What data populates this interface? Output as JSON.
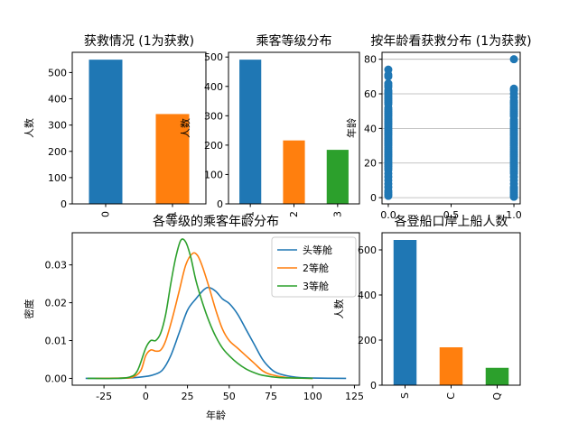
{
  "chart_data": [
    {
      "id": "survived",
      "type": "bar",
      "title": "获救情况 (1为获救)",
      "xlabel": "",
      "ylabel": "人数",
      "categories": [
        "0",
        "1"
      ],
      "values": [
        549,
        342
      ],
      "colors": [
        "#1f77b4",
        "#ff7f0e"
      ],
      "ylim": [
        0,
        577
      ],
      "yticks": [
        0,
        100,
        200,
        300,
        400,
        500
      ],
      "tick_rotation": 90
    },
    {
      "id": "pclass",
      "type": "bar",
      "title": "乘客等级分布",
      "xlabel": "",
      "ylabel": "人数",
      "categories": [
        "1",
        "2",
        "3"
      ],
      "values": [
        491,
        216,
        184
      ],
      "colors": [
        "#1f77b4",
        "#ff7f0e",
        "#2ca02c"
      ],
      "ylim": [
        0,
        516
      ],
      "yticks": [
        0,
        100,
        200,
        300,
        400,
        500
      ],
      "tick_rotation": 90
    },
    {
      "id": "age_survived",
      "type": "scatter",
      "title": "按年龄看获救分布 (1为获救)",
      "xlabel": "",
      "ylabel": "年龄",
      "xlim": [
        -0.05,
        1.05
      ],
      "ylim": [
        -3.6,
        84
      ],
      "xticks": [
        0.0,
        0.5,
        1.0
      ],
      "xtick_labels": [
        "0.0",
        "0.5",
        "1.0"
      ],
      "yticks": [
        0,
        20,
        40,
        60,
        80
      ],
      "grid": "y",
      "color": "#1f77b4",
      "series": [
        {
          "x": 0,
          "y": [
            1,
            2,
            3,
            4,
            6,
            8,
            10,
            12,
            14,
            16,
            17,
            18,
            19,
            20,
            21,
            22,
            23,
            24,
            25,
            26,
            27,
            28,
            29,
            30,
            31,
            32,
            33,
            34,
            35,
            36,
            37,
            38,
            39,
            40,
            41,
            42,
            43,
            44,
            45,
            46,
            47,
            48,
            49,
            50,
            51,
            52,
            54,
            55,
            56,
            57,
            58,
            59,
            60,
            61,
            62,
            64,
            65,
            66,
            70,
            71,
            74
          ]
        },
        {
          "x": 1,
          "y": [
            0.5,
            1,
            2,
            3,
            4,
            5,
            6,
            8,
            10,
            12,
            14,
            15,
            16,
            17,
            18,
            19,
            20,
            21,
            22,
            23,
            24,
            25,
            26,
            27,
            28,
            29,
            30,
            31,
            32,
            33,
            34,
            35,
            36,
            37,
            38,
            39,
            40,
            41,
            42,
            43,
            44,
            45,
            47,
            48,
            49,
            50,
            51,
            52,
            53,
            54,
            55,
            56,
            58,
            60,
            62,
            63,
            80
          ]
        }
      ]
    },
    {
      "id": "age_kde",
      "type": "line",
      "title": "各等级的乘客年龄分布",
      "xlabel": "年龄",
      "ylabel": "密度",
      "xlim": [
        -44,
        128
      ],
      "ylim": [
        -0.0018,
        0.0385
      ],
      "xticks": [
        -25,
        0,
        25,
        50,
        75,
        100,
        125
      ],
      "yticks": [
        0.0,
        0.01,
        0.02,
        0.03
      ],
      "ytick_labels": [
        "0.00",
        "0.01",
        "0.02",
        "0.03"
      ],
      "legend": "top-right",
      "series": [
        {
          "name": "头等舱",
          "color": "#1f77b4",
          "points": [
            [
              -36,
              0
            ],
            [
              -20,
              0
            ],
            [
              -10,
              0.0001
            ],
            [
              0,
              0.0005
            ],
            [
              5,
              0.001
            ],
            [
              10,
              0.0022
            ],
            [
              15,
              0.006
            ],
            [
              20,
              0.012
            ],
            [
              25,
              0.018
            ],
            [
              30,
              0.021
            ],
            [
              35,
              0.0235
            ],
            [
              38,
              0.024
            ],
            [
              42,
              0.023
            ],
            [
              46,
              0.021
            ],
            [
              50,
              0.0198
            ],
            [
              55,
              0.017
            ],
            [
              60,
              0.013
            ],
            [
              65,
              0.009
            ],
            [
              70,
              0.005
            ],
            [
              75,
              0.0025
            ],
            [
              80,
              0.0012
            ],
            [
              90,
              0.0003
            ],
            [
              100,
              0.0001
            ],
            [
              120,
              0
            ]
          ]
        },
        {
          "name": "2等舱",
          "color": "#ff7f0e",
          "points": [
            [
              -30,
              0
            ],
            [
              -15,
              0.0001
            ],
            [
              -8,
              0.0003
            ],
            [
              -3,
              0.002
            ],
            [
              0,
              0.006
            ],
            [
              3,
              0.0075
            ],
            [
              6,
              0.0072
            ],
            [
              9,
              0.0075
            ],
            [
              12,
              0.01
            ],
            [
              16,
              0.016
            ],
            [
              20,
              0.023
            ],
            [
              24,
              0.03
            ],
            [
              28,
              0.033
            ],
            [
              31,
              0.0325
            ],
            [
              34,
              0.0295
            ],
            [
              38,
              0.024
            ],
            [
              42,
              0.018
            ],
            [
              46,
              0.013
            ],
            [
              50,
              0.01
            ],
            [
              55,
              0.008
            ],
            [
              60,
              0.006
            ],
            [
              65,
              0.004
            ],
            [
              70,
              0.002
            ],
            [
              75,
              0.001
            ],
            [
              85,
              0.0002
            ],
            [
              100,
              0
            ]
          ]
        },
        {
          "name": "3等舱",
          "color": "#2ca02c",
          "points": [
            [
              -35,
              0
            ],
            [
              -20,
              0
            ],
            [
              -10,
              0.0003
            ],
            [
              -5,
              0.002
            ],
            [
              0,
              0.008
            ],
            [
              3,
              0.01
            ],
            [
              6,
              0.01
            ],
            [
              9,
              0.012
            ],
            [
              12,
              0.017
            ],
            [
              15,
              0.025
            ],
            [
              18,
              0.032
            ],
            [
              21,
              0.0365
            ],
            [
              24,
              0.036
            ],
            [
              27,
              0.032
            ],
            [
              30,
              0.026
            ],
            [
              34,
              0.02
            ],
            [
              38,
              0.015
            ],
            [
              42,
              0.011
            ],
            [
              46,
              0.008
            ],
            [
              50,
              0.006
            ],
            [
              55,
              0.004
            ],
            [
              60,
              0.0025
            ],
            [
              65,
              0.0015
            ],
            [
              70,
              0.0008
            ],
            [
              80,
              0.0002
            ],
            [
              90,
              0.0001
            ],
            [
              100,
              0
            ]
          ]
        }
      ]
    },
    {
      "id": "embarked",
      "type": "bar",
      "title": "各登船口岸上船人数",
      "xlabel": "",
      "ylabel": "人数",
      "categories": [
        "S",
        "C",
        "Q"
      ],
      "values": [
        644,
        168,
        77
      ],
      "colors": [
        "#1f77b4",
        "#ff7f0e",
        "#2ca02c"
      ],
      "ylim": [
        0,
        676
      ],
      "yticks": [
        0,
        200,
        400,
        600
      ],
      "tick_rotation": 90
    }
  ]
}
